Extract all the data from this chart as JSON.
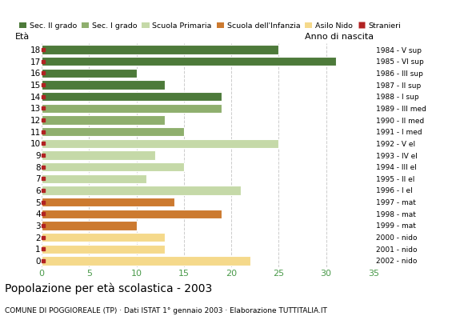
{
  "ages": [
    18,
    17,
    16,
    15,
    14,
    13,
    12,
    11,
    10,
    9,
    8,
    7,
    6,
    5,
    4,
    3,
    2,
    1,
    0
  ],
  "values": [
    25,
    31,
    10,
    13,
    19,
    19,
    13,
    15,
    25,
    12,
    15,
    11,
    21,
    14,
    19,
    10,
    13,
    13,
    22
  ],
  "anno_nascita": [
    "1984 - V sup",
    "1985 - VI sup",
    "1986 - III sup",
    "1987 - II sup",
    "1988 - I sup",
    "1989 - III med",
    "1990 - II med",
    "1991 - I med",
    "1992 - V el",
    "1993 - IV el",
    "1994 - III el",
    "1995 - II el",
    "1996 - I el",
    "1997 - mat",
    "1998 - mat",
    "1999 - mat",
    "2000 - nido",
    "2001 - nido",
    "2002 - nido"
  ],
  "bar_colors": [
    "#4d7a3a",
    "#4d7a3a",
    "#4d7a3a",
    "#4d7a3a",
    "#4d7a3a",
    "#8faf6e",
    "#8faf6e",
    "#8faf6e",
    "#c5d9a8",
    "#c5d9a8",
    "#c5d9a8",
    "#c5d9a8",
    "#c5d9a8",
    "#cc7a30",
    "#cc7a30",
    "#cc7a30",
    "#f5d98b",
    "#f5d98b",
    "#f5d98b"
  ],
  "stranieri_color": "#b22222",
  "legend_labels": [
    "Sec. II grado",
    "Sec. I grado",
    "Scuola Primaria",
    "Scuola dell'Infanzia",
    "Asilo Nido",
    "Stranieri"
  ],
  "legend_colors": [
    "#4d7a3a",
    "#8faf6e",
    "#c5d9a8",
    "#cc7a30",
    "#f5d98b",
    "#b22222"
  ],
  "title": "Popolazione per età scolastica - 2003",
  "subtitle": "COMUNE DI POGGIOREALE (TP) · Dati ISTAT 1° gennaio 2003 · Elaborazione TUTTITALIA.IT",
  "label_eta": "Età",
  "label_anno": "Anno di nascita",
  "xlim": [
    0,
    35
  ],
  "xticks": [
    0,
    5,
    10,
    15,
    20,
    25,
    30,
    35
  ],
  "background_color": "#ffffff",
  "grid_color": "#cccccc",
  "axis_tick_color": "#4a9a4a",
  "bar_height": 0.78
}
